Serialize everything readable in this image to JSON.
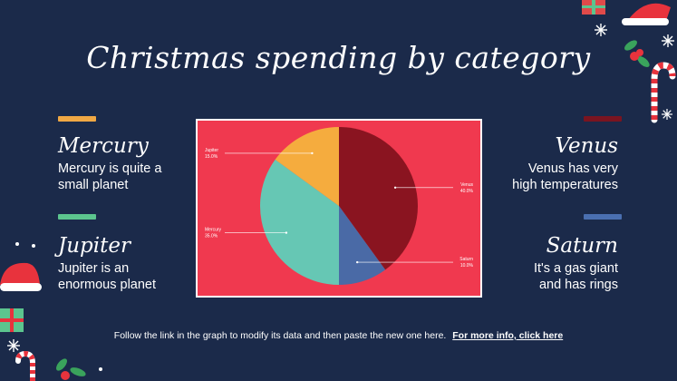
{
  "slide": {
    "title": "Christmas spending by category",
    "footer_text": "Follow the link in the graph to modify its data and then paste the new one here.",
    "footer_link": "For more info, click here"
  },
  "categories": {
    "mercury": {
      "name": "Mercury",
      "desc_line1": "Mercury is quite a",
      "desc_line2": "small planet",
      "color": "#f0a844"
    },
    "venus": {
      "name": "Venus",
      "desc_line1": "Venus has very",
      "desc_line2": "high temperatures",
      "color": "#7a1420"
    },
    "jupiter": {
      "name": "Jupiter",
      "desc_line1": "Jupiter is an",
      "desc_line2": "enormous planet",
      "color": "#5cc58e"
    },
    "saturn": {
      "name": "Saturn",
      "desc_line1": "It's a gas giant",
      "desc_line2": "and has rings",
      "color": "#4a6fb0"
    }
  },
  "chart_data": {
    "type": "pie",
    "background": "#f0394f",
    "slices": [
      {
        "label": "Venus",
        "value": 40.0,
        "display": "40.0%",
        "color": "#8a1420"
      },
      {
        "label": "Saturn",
        "value": 10.0,
        "display": "10.0%",
        "color": "#4a6aa6"
      },
      {
        "label": "Mercury",
        "value": 35.0,
        "display": "35.0%",
        "color": "#66c7b4"
      },
      {
        "label": "Jupiter",
        "value": 15.0,
        "display": "15.0%",
        "color": "#f5ac3e"
      }
    ]
  }
}
